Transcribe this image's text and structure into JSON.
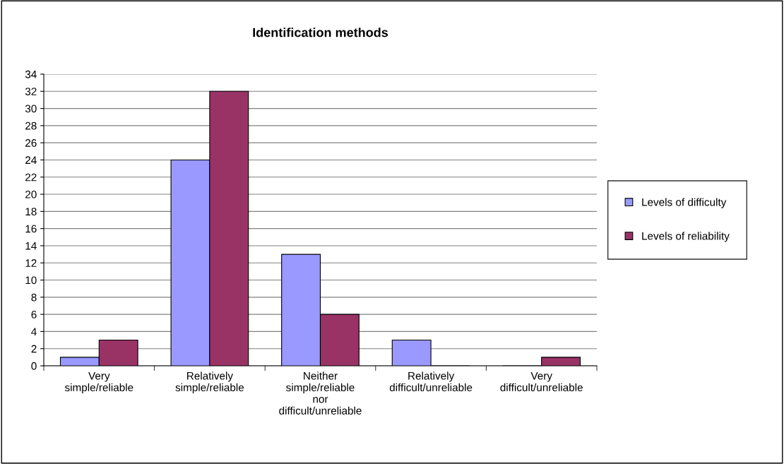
{
  "chart_data": {
    "type": "bar",
    "title": "Identification methods",
    "categories": [
      "Very\nsimple/reliable",
      "Relatively\nsimple/reliable",
      "Neither\nsimple/reliable\nnor\ndifficult/unreliable",
      "Relatively\ndifficult/unreliable",
      "Very\ndifficult/unreliable"
    ],
    "series": [
      {
        "name": "Levels of difficulty",
        "color": "#9999ff",
        "values": [
          1,
          24,
          13,
          3,
          0
        ]
      },
      {
        "name": "Levels of reliability",
        "color": "#993366",
        "values": [
          3,
          32,
          6,
          0,
          1
        ]
      }
    ],
    "ylim": [
      0,
      34
    ],
    "yticks": [
      0,
      2,
      4,
      6,
      8,
      10,
      12,
      14,
      16,
      18,
      20,
      22,
      24,
      26,
      28,
      30,
      32,
      34
    ],
    "grid": "y",
    "legend": "right"
  }
}
